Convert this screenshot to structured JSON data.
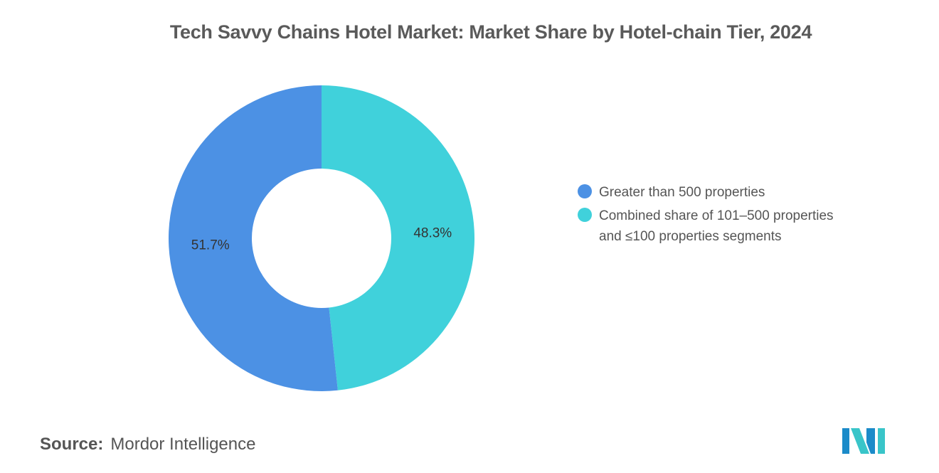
{
  "title": "Tech Savvy Chains Hotel Market: Market Share by Hotel-chain Tier, 2024",
  "chart_data": {
    "type": "pie",
    "donut": true,
    "start_angle_deg": 0,
    "direction": "clockwise",
    "slices": [
      {
        "label": "Combined share of 101–500 properties and ≤100 properties segments",
        "value": 48.3,
        "display": "48.3%",
        "color": "#40D1DB"
      },
      {
        "label": "Greater than 500 properties",
        "value": 51.7,
        "display": "51.7%",
        "color": "#4C91E4"
      }
    ],
    "legend": {
      "position": "right",
      "items": [
        {
          "label": "Greater than 500 properties",
          "color": "#4C91E4"
        },
        {
          "label": "Combined share of 101–500 properties and ≤100 properties segments",
          "color": "#40D1DB"
        }
      ]
    }
  },
  "source": {
    "key": "Source:",
    "value": "Mordor Intelligence"
  },
  "logo": {
    "icon": "mordor-intelligence-logo-icon",
    "colors": [
      "#1B8BC9",
      "#39C5C9"
    ]
  }
}
